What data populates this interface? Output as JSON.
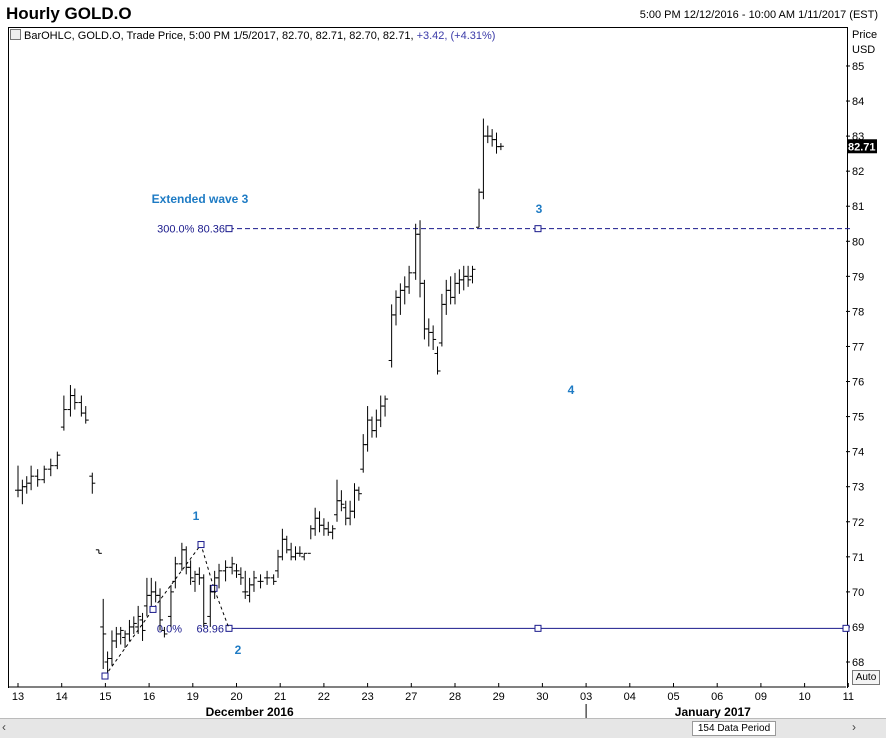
{
  "title": "Hourly GOLD.O",
  "range": "5:00 PM 12/12/2016 - 10:00 AM 1/11/2017 (EST)",
  "legend": {
    "text": "BarOHLC, GOLD.O, Trade Price, 5:00 PM 1/5/2017, 82.70, 82.71, 82.70, 82.71,",
    "change": "+3.42, (+4.31%)"
  },
  "scroll": {
    "left": "‹",
    "right": "›",
    "label": "154 Data Period"
  },
  "auto_label": "Auto",
  "chart_data": {
    "type": "bar",
    "ohlc": true,
    "yaxis_title": [
      "Price",
      "USD"
    ],
    "ylim": [
      67.5,
      85.7
    ],
    "yticks": [
      68,
      69,
      70,
      71,
      72,
      73,
      74,
      75,
      76,
      77,
      78,
      79,
      80,
      81,
      82,
      83,
      84,
      85
    ],
    "last_price": "82.71",
    "xlim": [
      13,
      11.3
    ],
    "xticks": [
      {
        "label": "13",
        "x": 13
      },
      {
        "label": "14",
        "x": 14
      },
      {
        "label": "15",
        "x": 15
      },
      {
        "label": "16",
        "x": 16
      },
      {
        "label": "19",
        "x": 17
      },
      {
        "label": "20",
        "x": 18
      },
      {
        "label": "21",
        "x": 19
      },
      {
        "label": "22",
        "x": 20
      },
      {
        "label": "23",
        "x": 21
      },
      {
        "label": "27",
        "x": 22
      },
      {
        "label": "28",
        "x": 23
      },
      {
        "label": "29",
        "x": 24
      },
      {
        "label": "30",
        "x": 25
      },
      {
        "label": "03",
        "x": 26
      },
      {
        "label": "04",
        "x": 27
      },
      {
        "label": "05",
        "x": 28
      },
      {
        "label": "06",
        "x": 29
      },
      {
        "label": "09",
        "x": 30
      },
      {
        "label": "10",
        "x": 31
      },
      {
        "label": "11",
        "x": 32
      }
    ],
    "month_labels": [
      {
        "label": "December 2016",
        "x": 18.3
      },
      {
        "label": "January 2017",
        "x": 28.9
      }
    ],
    "bars": [
      [
        13.0,
        72.9,
        73.6,
        72.7,
        72.9
      ],
      [
        13.1,
        72.9,
        73.2,
        72.5,
        73.0
      ],
      [
        13.2,
        73.0,
        73.3,
        72.8,
        73.1
      ],
      [
        13.3,
        73.1,
        73.6,
        72.9,
        73.3
      ],
      [
        13.45,
        73.3,
        73.5,
        73.0,
        73.2
      ],
      [
        13.6,
        73.2,
        73.6,
        73.1,
        73.5
      ],
      [
        13.75,
        73.5,
        73.8,
        73.3,
        73.6
      ],
      [
        13.9,
        73.6,
        74.0,
        73.5,
        73.9
      ],
      [
        14.05,
        74.7,
        75.6,
        74.6,
        75.2
      ],
      [
        14.2,
        75.2,
        75.9,
        75.0,
        75.6
      ],
      [
        14.3,
        75.6,
        75.8,
        75.2,
        75.4
      ],
      [
        14.45,
        75.4,
        75.6,
        75.0,
        75.1
      ],
      [
        14.55,
        75.1,
        75.3,
        74.8,
        74.9
      ],
      [
        14.7,
        73.3,
        73.4,
        72.8,
        73.1
      ],
      [
        14.85,
        71.2,
        71.2,
        71.1,
        71.1
      ],
      [
        14.95,
        69.0,
        69.8,
        67.8,
        68.8
      ],
      [
        15.05,
        68.0,
        68.3,
        67.7,
        68.1
      ],
      [
        15.15,
        68.1,
        68.9,
        67.9,
        68.6
      ],
      [
        15.25,
        68.6,
        69.0,
        68.4,
        68.8
      ],
      [
        15.35,
        68.8,
        69.0,
        68.5,
        68.9
      ],
      [
        15.45,
        68.7,
        68.9,
        68.4,
        68.8
      ],
      [
        15.55,
        68.8,
        69.2,
        68.6,
        69.0
      ],
      [
        15.65,
        69.0,
        69.3,
        68.8,
        69.1
      ],
      [
        15.75,
        69.0,
        69.6,
        68.8,
        69.3
      ],
      [
        15.85,
        69.2,
        69.4,
        68.6,
        68.9
      ],
      [
        15.95,
        69.6,
        70.4,
        69.3,
        69.9
      ],
      [
        16.05,
        69.9,
        70.4,
        69.6,
        70.0
      ],
      [
        16.15,
        70.0,
        70.3,
        69.7,
        69.9
      ],
      [
        16.25,
        69.9,
        70.1,
        68.9,
        69.2
      ],
      [
        16.35,
        68.9,
        69.0,
        68.7,
        68.8
      ],
      [
        16.5,
        69.3,
        70.2,
        69.0,
        70.0
      ],
      [
        16.6,
        70.3,
        71.0,
        70.1,
        70.8
      ],
      [
        16.75,
        70.8,
        71.4,
        70.6,
        71.2
      ],
      [
        16.85,
        71.2,
        71.3,
        70.5,
        70.7
      ],
      [
        16.95,
        70.7,
        70.9,
        70.2,
        70.4
      ],
      [
        17.05,
        70.3,
        70.6,
        70.0,
        70.5
      ],
      [
        17.15,
        70.5,
        70.7,
        70.2,
        70.4
      ],
      [
        17.25,
        70.4,
        70.5,
        69.0,
        69.1
      ],
      [
        17.4,
        69.3,
        70.2,
        69.0,
        70.0
      ],
      [
        17.5,
        70.0,
        70.6,
        69.8,
        70.4
      ],
      [
        17.6,
        70.4,
        70.8,
        70.1,
        70.6
      ],
      [
        17.75,
        70.6,
        70.9,
        70.3,
        70.7
      ],
      [
        17.9,
        70.7,
        71.0,
        70.5,
        70.8
      ],
      [
        18.0,
        70.6,
        70.8,
        70.4,
        70.6
      ],
      [
        18.1,
        70.5,
        70.7,
        70.2,
        70.4
      ],
      [
        18.2,
        70.0,
        70.6,
        69.8,
        70.0
      ],
      [
        18.3,
        69.9,
        70.4,
        69.7,
        70.2
      ],
      [
        18.4,
        70.2,
        70.6,
        70.0,
        70.4
      ],
      [
        18.55,
        70.3,
        70.5,
        70.1,
        70.3
      ],
      [
        18.7,
        70.4,
        70.6,
        70.2,
        70.4
      ],
      [
        18.85,
        70.4,
        70.5,
        70.2,
        70.3
      ],
      [
        18.95,
        70.6,
        71.2,
        70.4,
        71.0
      ],
      [
        19.05,
        71.0,
        71.8,
        70.9,
        71.5
      ],
      [
        19.15,
        71.5,
        71.6,
        71.1,
        71.2
      ],
      [
        19.25,
        71.2,
        71.4,
        70.9,
        71.0
      ],
      [
        19.35,
        71.0,
        71.3,
        70.9,
        71.1
      ],
      [
        19.45,
        71.1,
        71.3,
        71.0,
        71.1
      ],
      [
        19.55,
        71.0,
        71.1,
        70.9,
        71.1
      ],
      [
        19.7,
        71.1,
        71.9,
        71.5,
        71.8
      ],
      [
        19.8,
        71.8,
        72.4,
        71.6,
        72.1
      ],
      [
        19.9,
        72.1,
        72.3,
        71.7,
        71.9
      ],
      [
        20.0,
        71.9,
        72.1,
        71.6,
        71.8
      ],
      [
        20.1,
        71.8,
        72.0,
        71.6,
        71.7
      ],
      [
        20.2,
        71.7,
        71.9,
        71.5,
        71.8
      ],
      [
        20.3,
        72.2,
        73.2,
        72.0,
        72.6
      ],
      [
        20.4,
        72.6,
        72.9,
        72.3,
        72.5
      ],
      [
        20.5,
        72.4,
        72.6,
        71.9,
        72.1
      ],
      [
        20.6,
        72.1,
        72.6,
        71.9,
        72.3
      ],
      [
        20.7,
        72.3,
        73.1,
        72.1,
        72.9
      ],
      [
        20.8,
        72.9,
        73.0,
        72.6,
        72.8
      ],
      [
        20.9,
        73.5,
        74.5,
        73.4,
        74.2
      ],
      [
        21.0,
        74.2,
        75.3,
        74.0,
        74.9
      ],
      [
        21.1,
        74.9,
        75.0,
        74.4,
        74.6
      ],
      [
        21.2,
        74.6,
        75.2,
        74.4,
        74.9
      ],
      [
        21.3,
        74.9,
        75.6,
        74.7,
        75.3
      ],
      [
        21.4,
        75.3,
        75.6,
        75.0,
        75.5
      ],
      [
        21.55,
        76.6,
        78.2,
        76.4,
        77.9
      ],
      [
        21.65,
        77.9,
        78.6,
        77.6,
        78.4
      ],
      [
        21.75,
        78.4,
        78.8,
        77.9,
        78.6
      ],
      [
        21.85,
        78.6,
        79.0,
        78.2,
        78.7
      ],
      [
        21.95,
        78.7,
        79.3,
        78.5,
        79.1
      ],
      [
        22.1,
        79.1,
        80.5,
        78.9,
        80.2
      ],
      [
        22.2,
        80.2,
        80.6,
        78.4,
        78.8
      ],
      [
        22.3,
        78.8,
        78.9,
        77.2,
        77.5
      ],
      [
        22.4,
        77.5,
        77.8,
        77.0,
        77.4
      ],
      [
        22.5,
        77.4,
        77.6,
        76.9,
        77.2
      ],
      [
        22.6,
        76.8,
        77.0,
        76.2,
        76.3
      ],
      [
        22.7,
        77.1,
        78.5,
        77.0,
        78.2
      ],
      [
        22.8,
        78.2,
        78.9,
        77.9,
        78.6
      ],
      [
        22.9,
        78.6,
        79.0,
        78.2,
        78.4
      ],
      [
        23.0,
        78.4,
        79.1,
        78.2,
        78.8
      ],
      [
        23.1,
        78.8,
        79.2,
        78.5,
        78.9
      ],
      [
        23.2,
        78.9,
        79.3,
        78.6,
        79.0
      ],
      [
        23.3,
        79.0,
        79.3,
        78.7,
        78.9
      ],
      [
        23.4,
        79.0,
        79.3,
        78.8,
        79.2
      ],
      [
        23.55,
        80.4,
        81.5,
        80.4,
        81.4
      ],
      [
        23.65,
        81.4,
        83.5,
        81.2,
        83.0
      ],
      [
        23.75,
        83.0,
        83.3,
        82.8,
        83.0
      ],
      [
        23.85,
        83.0,
        83.2,
        82.7,
        82.9
      ],
      [
        23.95,
        82.9,
        83.1,
        82.5,
        82.7
      ],
      [
        24.05,
        82.7,
        82.8,
        82.6,
        82.71
      ]
    ],
    "fib_levels": [
      {
        "label": "300.0% 80.36",
        "value": 80.36,
        "style": "dashed"
      },
      {
        "label": "0.0%",
        "value_label": "68.96",
        "value": 68.96,
        "style": "solid"
      }
    ],
    "annotations": [
      {
        "text": "Extended wave 3"
      },
      {
        "text": "1"
      },
      {
        "text": "2"
      },
      {
        "text": "3"
      },
      {
        "text": "4"
      }
    ]
  }
}
